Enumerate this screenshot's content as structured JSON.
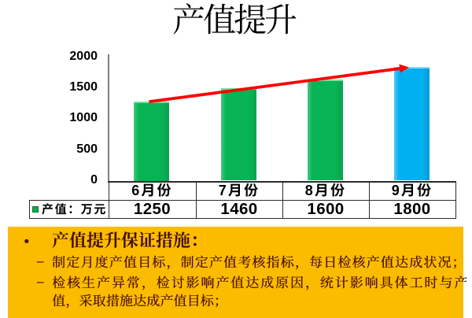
{
  "slide_title": "产值提升",
  "chart_data": {
    "type": "bar",
    "title": "产值提升",
    "categories": [
      "6月份",
      "7月份",
      "8月份",
      "9月份"
    ],
    "series": [
      {
        "name": "产值：万元",
        "values": [
          1250,
          1460,
          1600,
          1800
        ]
      }
    ],
    "ylabel": "",
    "xlabel": "",
    "ylim": [
      0,
      2000
    ],
    "ytick_labels": [
      "2000",
      "1500",
      "1000",
      "500",
      "0"
    ],
    "grid": false,
    "legend_position": "table-row-left",
    "bar_colors": [
      "#07b355",
      "#07b355",
      "#07b355",
      "#00b0f0"
    ],
    "trend_arrow": {
      "color": "#fe0000",
      "from_value": 1250,
      "to_value": 1800
    }
  },
  "data_table": {
    "legend_label": "产值：万元",
    "legend_swatch_color": "#14ab50",
    "columns": [
      "6月份",
      "7月份",
      "8月份",
      "9月份"
    ],
    "values": [
      "1250",
      "1460",
      "1600",
      "1800"
    ]
  },
  "banner": {
    "background_color": "#fbbc00",
    "heading": "产值提升保证措施：",
    "heading_bullet": "•",
    "item_bullet": "–",
    "bullets": [
      {
        "lines": [
          "制定月度产值目标，制定产值考核指标，每日检核产值达成状况；"
        ]
      },
      {
        "lines": [
          "检核生产异常，检讨影响产值达成原因，统计影响具体工时与产",
          "值，采取措施达成产值目标；"
        ]
      }
    ]
  }
}
